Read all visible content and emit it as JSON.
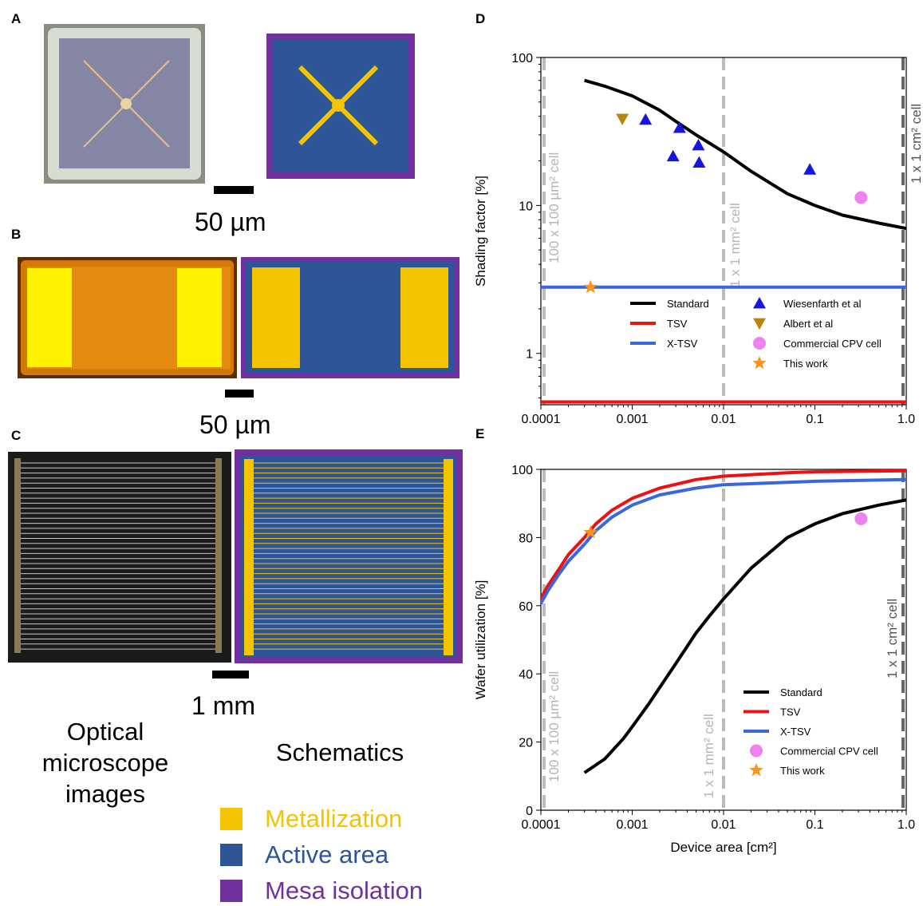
{
  "panels": {
    "A": {
      "letter": "A",
      "scale_label": "50 µm"
    },
    "B": {
      "letter": "B",
      "scale_label": "50 µm"
    },
    "C": {
      "letter": "C",
      "scale_label": "1 mm"
    },
    "D": {
      "letter": "D"
    },
    "E": {
      "letter": "E"
    }
  },
  "captions": {
    "optical": "Optical microscope images",
    "schematics": "Schematics"
  },
  "schematic_legend": [
    {
      "label": "Metallization",
      "color": "#f5c400"
    },
    {
      "label": "Active area",
      "color": "#2e5597"
    },
    {
      "label": "Mesa isolation",
      "color": "#7030a0"
    }
  ],
  "colors": {
    "standard": "#000000",
    "tsv": "#ee1111",
    "xtsv": "#3a66e0",
    "wiesenfarth": "#1515e0",
    "albert": "#b8860b",
    "commercial": "#ee82ee",
    "this_work": "#f7941d",
    "ref_line": "#bbbbbb",
    "ref_line_dark": "#666666"
  },
  "chart_data": [
    {
      "id": "D",
      "type": "line",
      "xscale": "log",
      "yscale": "log",
      "xlim": [
        0.0001,
        1.0
      ],
      "ylim": [
        0.45,
        100
      ],
      "ylabel": "Shading factor [%]",
      "xlabel": "",
      "xticks": [
        "0.0001",
        "0.001",
        "0.01",
        "0.1",
        "1.0"
      ],
      "yticks": [
        "1",
        "10",
        "100"
      ],
      "reference_lines": [
        {
          "x": 0.0001,
          "label": "100 x 100 µm² cell"
        },
        {
          "x": 0.01,
          "label": "1 x 1 mm² cell"
        },
        {
          "x": 1.0,
          "label": "1 x 1 cm² cell"
        }
      ],
      "series": [
        {
          "name": "Standard",
          "kind": "line",
          "x": [
            0.0003,
            0.0005,
            0.001,
            0.002,
            0.003,
            0.005,
            0.01,
            0.02,
            0.05,
            0.1,
            0.2,
            0.5,
            1.0
          ],
          "y": [
            70,
            64,
            55,
            44,
            37,
            30,
            23,
            17,
            12,
            10,
            8.6,
            7.6,
            7
          ]
        },
        {
          "name": "TSV",
          "kind": "line",
          "x": [
            0.0001,
            1.0
          ],
          "y": [
            0.47,
            0.47
          ]
        },
        {
          "name": "X-TSV",
          "kind": "line",
          "x": [
            0.0001,
            1.0
          ],
          "y": [
            2.8,
            2.8
          ]
        },
        {
          "name": "Wiesenfarth et al",
          "kind": "triangle-up",
          "x": [
            0.0014,
            0.0028,
            0.0033,
            0.0053,
            0.0054,
            0.088
          ],
          "y": [
            38,
            21.5,
            33.5,
            25.5,
            19.5,
            17.5
          ]
        },
        {
          "name": "Albert et al",
          "kind": "triangle-down",
          "x": [
            0.00078
          ],
          "y": [
            38.5
          ]
        },
        {
          "name": "Commercial CPV cell",
          "kind": "circle",
          "x": [
            0.32
          ],
          "y": [
            11.3
          ]
        },
        {
          "name": "This work",
          "kind": "star",
          "x": [
            0.00035
          ],
          "y": [
            2.8
          ]
        }
      ],
      "legend_left": [
        "Standard",
        "TSV",
        "X-TSV"
      ],
      "legend_right": [
        "Wiesenfarth et al",
        "Albert et al",
        "Commercial CPV cell",
        "This work"
      ]
    },
    {
      "id": "E",
      "type": "line",
      "xscale": "log",
      "yscale": "linear",
      "xlim": [
        0.0001,
        1.0
      ],
      "ylim": [
        0,
        100
      ],
      "ylabel": "Wafer utilization [%]",
      "xlabel": "Device area [cm²]",
      "xticks": [
        "0.0001",
        "0.001",
        "0.01",
        "0.1",
        "1.0"
      ],
      "yticks": [
        "0",
        "20",
        "40",
        "60",
        "80",
        "100"
      ],
      "reference_lines": [
        {
          "x": 0.0001,
          "label": "100 x 100 µm² cell"
        },
        {
          "x": 0.01,
          "label": "1 x 1 mm² cell"
        },
        {
          "x": 1.0,
          "label": "1 x 1 cm² cell"
        }
      ],
      "series": [
        {
          "name": "Standard",
          "kind": "line",
          "x": [
            0.0003,
            0.0005,
            0.0008,
            0.001,
            0.0015,
            0.002,
            0.003,
            0.005,
            0.007,
            0.01,
            0.02,
            0.05,
            0.1,
            0.2,
            0.5,
            1.0
          ],
          "y": [
            11,
            15,
            21,
            24.5,
            31,
            36,
            43,
            52,
            57,
            62,
            71,
            80,
            84,
            87,
            89.5,
            91
          ]
        },
        {
          "name": "TSV",
          "kind": "line",
          "x": [
            9e-05,
            0.00012,
            0.00016,
            0.0002,
            0.0003,
            0.0004,
            0.0006,
            0.001,
            0.002,
            0.005,
            0.01,
            0.05,
            0.1,
            1.0
          ],
          "y": [
            60,
            66,
            71,
            75,
            80,
            84,
            88,
            91.5,
            94.5,
            97,
            98,
            99,
            99.3,
            99.6
          ]
        },
        {
          "name": "X-TSV",
          "kind": "line",
          "x": [
            9e-05,
            0.00012,
            0.00016,
            0.0002,
            0.0003,
            0.0004,
            0.0006,
            0.001,
            0.002,
            0.005,
            0.01,
            0.05,
            0.1,
            1.0
          ],
          "y": [
            58.5,
            64.5,
            69.5,
            73,
            78,
            82,
            86,
            89.5,
            92.5,
            94.5,
            95.5,
            96.2,
            96.5,
            97
          ]
        },
        {
          "name": "Commercial CPV cell",
          "kind": "circle",
          "x": [
            0.32
          ],
          "y": [
            85.5
          ]
        },
        {
          "name": "This work",
          "kind": "star",
          "x": [
            0.00035
          ],
          "y": [
            81.5
          ]
        }
      ],
      "legend": [
        "Standard",
        "TSV",
        "X-TSV",
        "Commercial CPV cell",
        "This work"
      ]
    }
  ]
}
